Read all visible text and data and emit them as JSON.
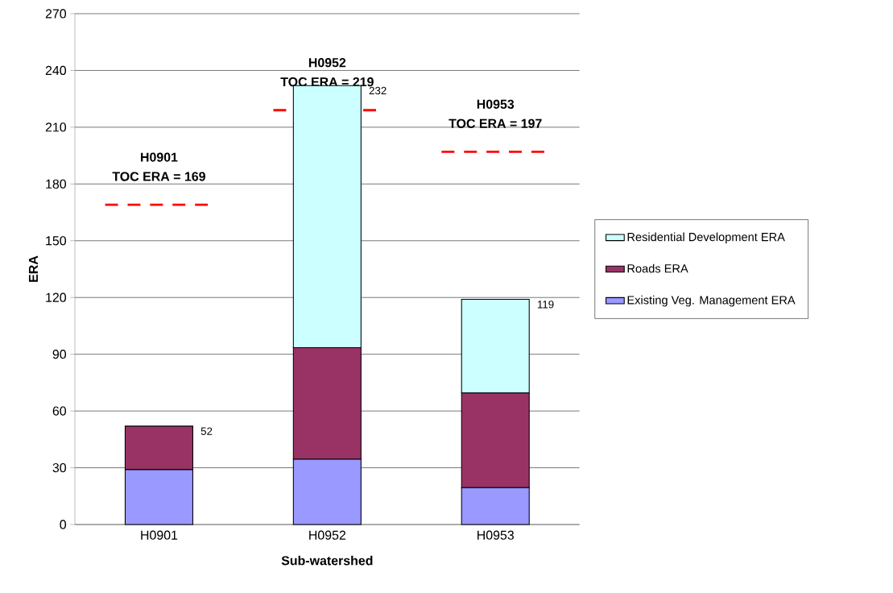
{
  "chart_data": {
    "type": "bar",
    "stacked": true,
    "xlabel": "Sub-watershed",
    "ylabel": "ERA",
    "categories": [
      "H0901",
      "H0952",
      "H0953"
    ],
    "series": [
      {
        "name": "Existing Veg. Management ERA",
        "color": "#9999ff",
        "values": [
          29,
          34.5,
          19.5
        ]
      },
      {
        "name": "Roads ERA",
        "color": "#993366",
        "values": [
          23,
          59,
          50
        ]
      },
      {
        "name": "Residential Development ERA",
        "color": "#ccffff",
        "values": [
          null,
          138.5,
          49.5
        ]
      }
    ],
    "totals": [
      "52",
      "232",
      "119"
    ],
    "ylim": [
      0,
      270
    ],
    "yticks": [
      0,
      30,
      60,
      90,
      120,
      150,
      180,
      210,
      240,
      270
    ],
    "grid": "y",
    "legend": "right",
    "ref_lines": [
      {
        "axis": "y",
        "value": 169,
        "label": "TOC ERA = 169",
        "color": "#ff0000",
        "line_style": "dashed"
      },
      {
        "axis": "y",
        "value": 219,
        "label": "TOC ERA = 219",
        "color": "#ff0000",
        "line_style": "dashed"
      },
      {
        "axis": "y",
        "value": 197,
        "label": "TOC ERA = 197",
        "color": "#ff0000",
        "line_style": "dashed"
      }
    ],
    "annotations": [
      "H0901",
      "H0952",
      "H0953"
    ]
  }
}
